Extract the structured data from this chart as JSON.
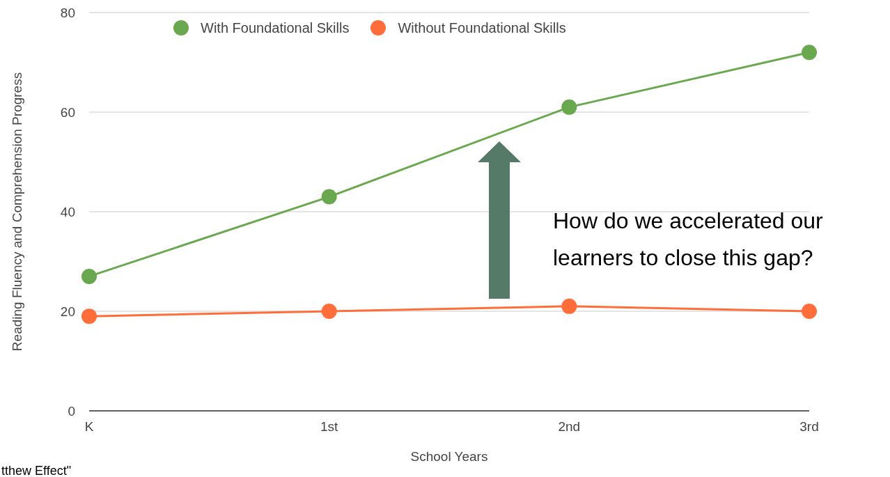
{
  "chart_data": {
    "type": "line",
    "xlabel": "School Years",
    "ylabel": "Reading Fluency and Comprehension Progress",
    "categories": [
      "K",
      "1st",
      "2nd",
      "3rd"
    ],
    "series": [
      {
        "name": "With Foundational Skills",
        "color": "#6aa84f",
        "values": [
          27,
          43,
          61,
          72
        ]
      },
      {
        "name": "Without Foundational Skills",
        "color": "#ff6d3a",
        "values": [
          19,
          20,
          21,
          20
        ]
      }
    ],
    "ylim": [
      0,
      80
    ],
    "yticks": [
      0,
      20,
      40,
      60,
      80
    ],
    "grid": "y",
    "legend": "top",
    "marker": "circle",
    "line_style": "solid",
    "annotations": [
      "How do we accelerated our learners to close this gap?",
      "tthew Effect\""
    ]
  }
}
